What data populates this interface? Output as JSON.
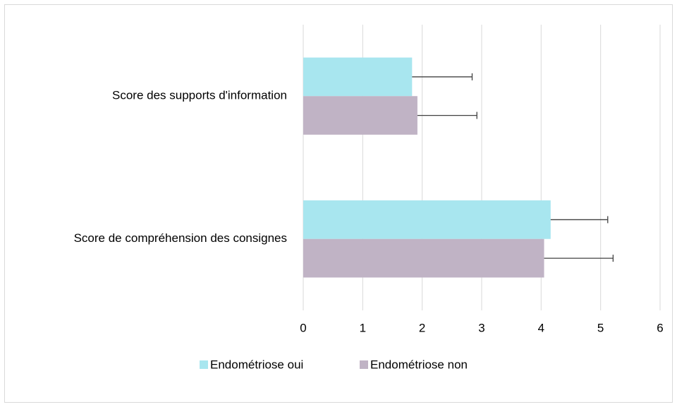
{
  "chart_data": {
    "type": "bar",
    "orientation": "horizontal",
    "categories": [
      "Score des supports d'information",
      "Score de compréhension des consignes"
    ],
    "series": [
      {
        "name": "Endométriose oui",
        "color": "#a8e6ef",
        "values": [
          1.83,
          4.16
        ],
        "errors": [
          1.01,
          0.96
        ]
      },
      {
        "name": "Endométriose non",
        "color": "#c0b3c5",
        "values": [
          1.92,
          4.05
        ],
        "errors": [
          1.0,
          1.16
        ]
      }
    ],
    "xlim": [
      0,
      6
    ],
    "xticks": [
      0,
      1,
      2,
      3,
      4,
      5,
      6
    ],
    "grid": true,
    "legend": "bottom"
  }
}
